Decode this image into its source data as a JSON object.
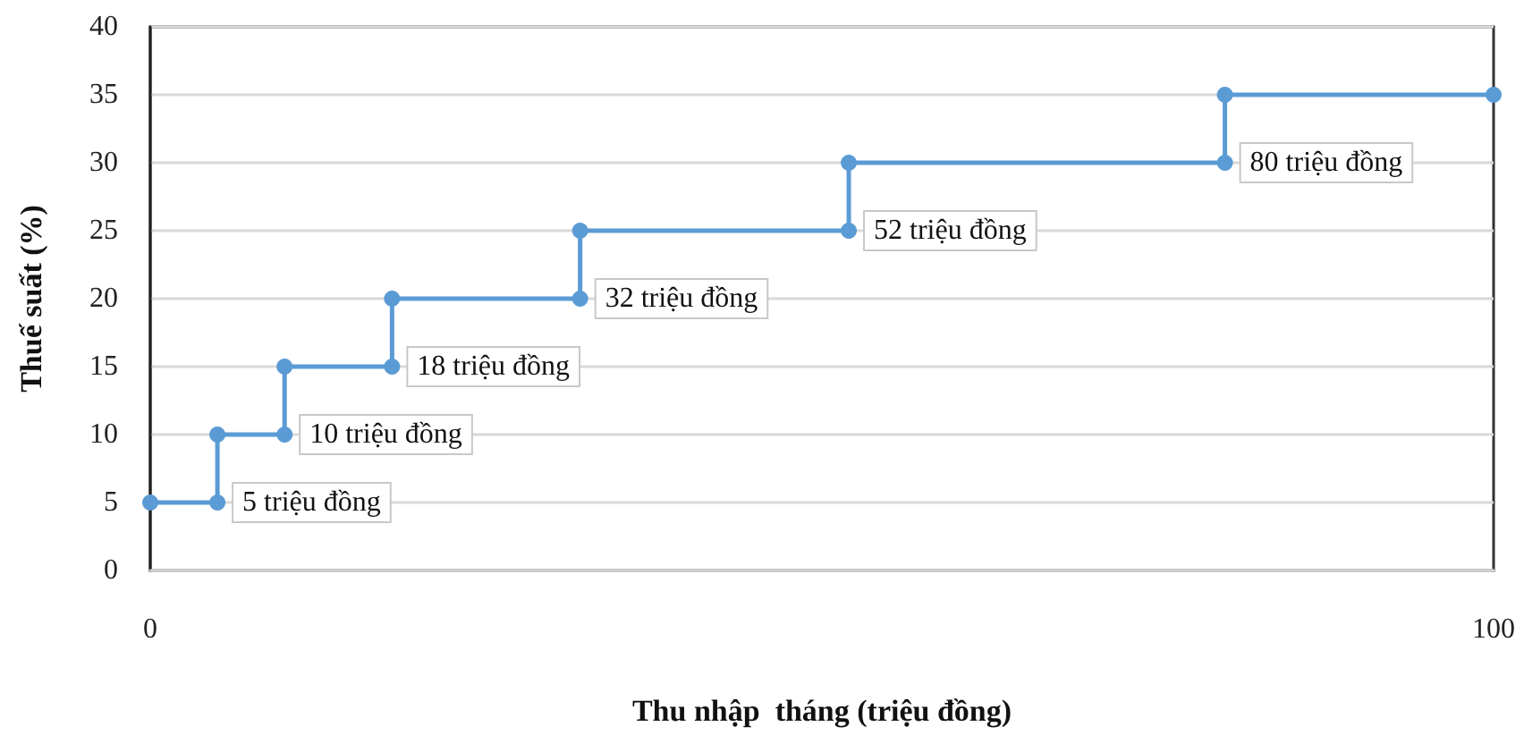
{
  "chart_data": {
    "type": "line",
    "xlabel": "Thu nhập  tháng (triệu đồng)",
    "ylabel": "Thuế suất (%)",
    "x": [
      0,
      5,
      5,
      10,
      10,
      18,
      18,
      32,
      32,
      52,
      52,
      80,
      80,
      100
    ],
    "series": [
      {
        "color": "#5b9bd5",
        "values": [
          5,
          5,
          10,
          10,
          15,
          15,
          20,
          20,
          25,
          25,
          30,
          30,
          35,
          35
        ]
      }
    ],
    "xlim": [
      0,
      100
    ],
    "xticks": [
      0,
      100
    ],
    "ylim": [
      0,
      40
    ],
    "yticks": [
      0,
      5,
      10,
      15,
      20,
      25,
      30,
      35,
      40
    ],
    "grid": "y",
    "marker": "circle",
    "line_style": "solid",
    "annotations": [
      {
        "text": "5 triệu đồng",
        "x": 5,
        "y": 5
      },
      {
        "text": "10 triệu đồng",
        "x": 10,
        "y": 10
      },
      {
        "text": "18 triệu đồng",
        "x": 18,
        "y": 15
      },
      {
        "text": "32 triệu đồng",
        "x": 32,
        "y": 20
      },
      {
        "text": "52 triệu đồng",
        "x": 52,
        "y": 25
      },
      {
        "text": "80 triệu đồng",
        "x": 80,
        "y": 30
      }
    ]
  }
}
